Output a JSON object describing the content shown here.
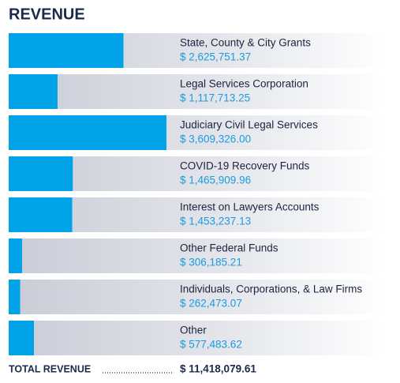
{
  "chart_data": {
    "type": "bar",
    "title": "REVENUE",
    "categories": [
      "State, County & City Grants",
      "Legal Services Corporation",
      "Judiciary Civil Legal Services",
      "COVID-19 Recovery Funds",
      "Interest on Lawyers Accounts",
      "Other Federal Funds",
      "Individuals, Corporations, & Law Firms",
      "Other"
    ],
    "values": [
      2625751.37,
      1117713.25,
      3609326.0,
      1465909.96,
      1453237.13,
      306185.21,
      262473.07,
      577483.62
    ],
    "value_labels": [
      "$ 2,625,751.37",
      "$ 1,117,713.25",
      "$ 3,609,326.00",
      "$ 1,465,909.96",
      "$ 1,453,237.13",
      "$ 306,185.21",
      "$ 262,473.07",
      "$ 577,483.62"
    ],
    "color": "#00a3e8",
    "xlim": [
      0,
      8700000
    ],
    "total_label": "TOTAL REVENUE",
    "total": "$ 11,418,079.61"
  }
}
